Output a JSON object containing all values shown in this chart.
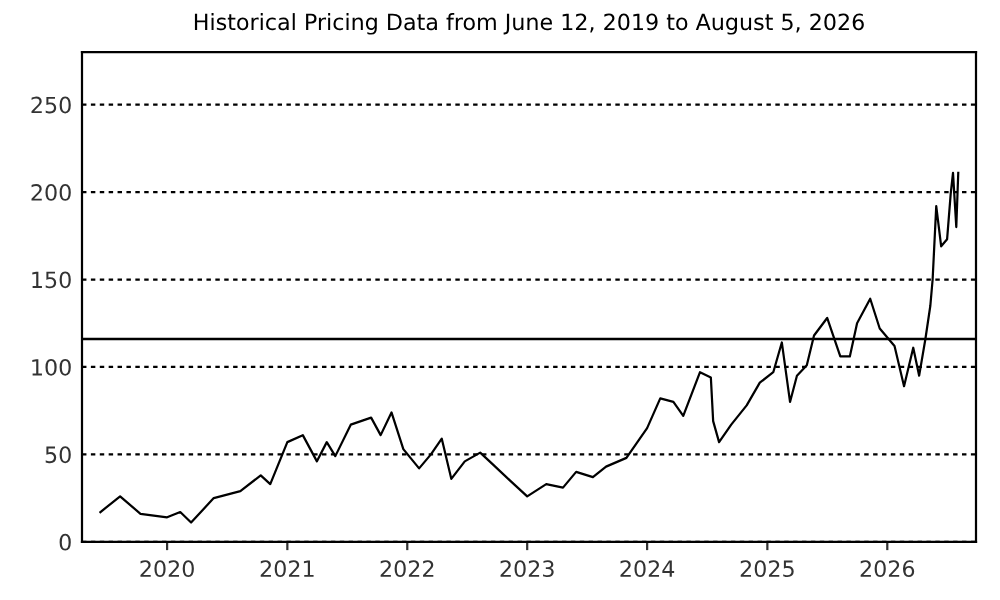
{
  "chart_data": {
    "type": "line",
    "title": "Historical Pricing Data from June 12, 2019 to August 5, 2026",
    "x": [
      "2019-06-12",
      "2019-08-11",
      "2019-10-12",
      "2020-01-01",
      "2020-02-10",
      "2020-03-14",
      "2020-05-22",
      "2020-08-11",
      "2020-10-12",
      "2020-11-10",
      "2021-01-01",
      "2021-02-17",
      "2021-04-01",
      "2021-05-01",
      "2021-05-27",
      "2021-07-13",
      "2021-09-13",
      "2021-10-12",
      "2021-11-14",
      "2021-12-20",
      "2022-02-06",
      "2022-03-14",
      "2022-04-16",
      "2022-05-15",
      "2022-06-25",
      "2022-08-11",
      "2022-09-20",
      "2022-11-10",
      "2023-01-01",
      "2023-02-28",
      "2023-04-20",
      "2023-05-30",
      "2023-07-20",
      "2023-08-29",
      "2023-10-30",
      "2024-01-01",
      "2024-02-10",
      "2024-03-21",
      "2024-04-20",
      "2024-06-10",
      "2024-07-13",
      "2024-07-20",
      "2024-08-07",
      "2024-09-13",
      "2024-10-30",
      "2024-12-09",
      "2025-01-19",
      "2025-02-14",
      "2025-03-11",
      "2025-04-01",
      "2025-05-01",
      "2025-05-23",
      "2025-07-02",
      "2025-08-11",
      "2025-09-09",
      "2025-10-01",
      "2025-11-10",
      "2025-12-09",
      "2026-01-23",
      "2026-02-21",
      "2026-03-21",
      "2026-04-08",
      "2026-04-27",
      "2026-05-12",
      "2026-05-19",
      "2026-05-30",
      "2026-06-14",
      "2026-07-02",
      "2026-07-13",
      "2026-07-20",
      "2026-07-30",
      "2026-08-05"
    ],
    "series": [
      {
        "color": "#000000",
        "values": [
          17,
          26,
          16,
          14,
          17,
          11,
          25,
          29,
          38,
          33,
          57,
          61,
          46,
          57,
          49,
          67,
          71,
          61,
          74,
          53,
          42,
          50,
          59,
          36,
          46,
          51,
          44,
          35,
          26,
          33,
          31,
          40,
          37,
          43,
          48,
          65,
          82,
          80,
          72,
          97,
          94,
          69,
          57,
          67,
          78,
          91,
          97,
          114,
          80,
          95,
          101,
          118,
          128,
          106,
          106,
          125,
          139,
          122,
          112,
          89,
          111,
          95,
          116,
          135,
          150,
          192,
          169,
          173,
          199,
          211,
          180,
          211
        ]
      }
    ],
    "xlim": [
      "2019-04-17",
      "2026-09-28"
    ],
    "xticks": [
      {
        "value": "2020-01-01",
        "label": "2020"
      },
      {
        "value": "2021-01-01",
        "label": "2021"
      },
      {
        "value": "2022-01-01",
        "label": "2022"
      },
      {
        "value": "2023-01-01",
        "label": "2023"
      },
      {
        "value": "2024-01-01",
        "label": "2024"
      },
      {
        "value": "2025-01-01",
        "label": "2025"
      },
      {
        "value": "2026-01-01",
        "label": "2026"
      }
    ],
    "ylim": [
      0,
      280
    ],
    "yticks": [
      0,
      50,
      100,
      150,
      200,
      250
    ],
    "grid": "y",
    "line_style": "solid",
    "ref_lines": [
      {
        "axis": "y",
        "value": 116,
        "color": "#000000"
      }
    ]
  }
}
